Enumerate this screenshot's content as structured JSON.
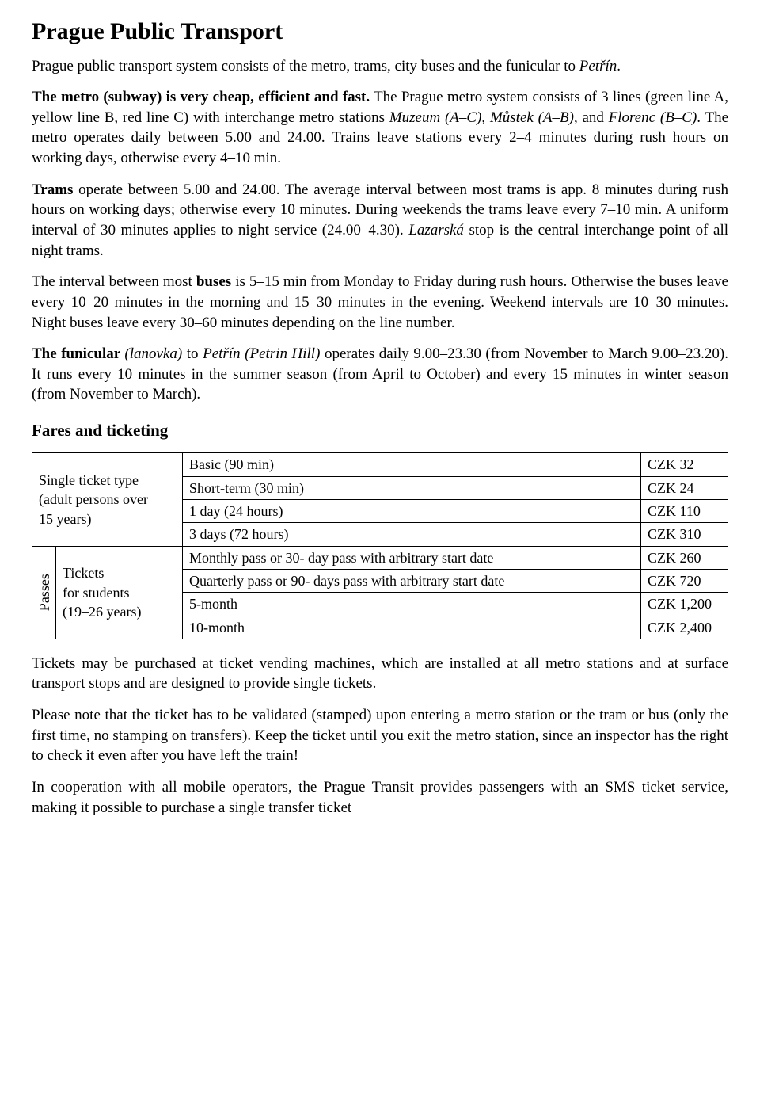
{
  "title": "Prague Public Transport",
  "intro_pre": "Prague public transport system consists of the metro, trams, city buses and the funicular to ",
  "intro_italic": "Petřín",
  "intro_post": ".",
  "metro_p1": "The metro (subway) is very cheap, efficient and fast.",
  "metro_p2_a": " The Prague metro system consists of 3 lines (green line A, yellow line B, red line C) with interchange metro stations ",
  "metro_p2_i1": "Muzeum (A–C)",
  "metro_p2_b": ", ",
  "metro_p2_i2": "Můstek (A–B)",
  "metro_p2_c": ", and ",
  "metro_p2_i3": "Florenc (B–C)",
  "metro_p2_d": ". The metro operates daily between 5.00 and 24.00. Trains leave stations every 2–4 minutes during rush hours on working days, otherwise every 4–10 min.",
  "trams_b": "Trams",
  "trams_a": " operate between 5.00 and 24.00. The average interval between most trams is app. 8 minutes during rush hours on working days; otherwise every 10 minutes. During weekends the trams leave every 7–10 min. A uniform interval of 30 minutes applies to night service (24.00–4.30). ",
  "trams_i": "Lazarská",
  "trams_c": " stop is the central interchange point of all night trams.",
  "buses_a": "The interval between most ",
  "buses_b": "buses",
  "buses_c": " is 5–15 min from Monday to Friday during rush hours. Otherwise the buses leave every 10–20 minutes in the morning and 15–30 minutes in the evening. Weekend intervals are 10–30 minutes. Night buses leave every 30–60 minutes depending on the line number.",
  "funic_b": "The funicular ",
  "funic_i1": "(lanovka)",
  "funic_a": " to ",
  "funic_i2": "Petřín (Petrin Hill)",
  "funic_c": " operates daily 9.00–23.30 (from November to March 9.00–23.20). It runs every 10 minutes in the summer season (from April to October) and every 15 minutes in winter season (from November to March).",
  "fares_heading": "Fares and ticketing",
  "table": {
    "single_label_l1": "Single ticket type",
    "single_label_l2": "(adult persons over",
    "single_label_l3": "15 years)",
    "passes_label": "Passes",
    "students_l1": "Tickets",
    "students_l2": "for students",
    "students_l3": "(19–26 years)",
    "rows": [
      {
        "desc": "Basic (90 min)",
        "price": "CZK 32"
      },
      {
        "desc": "Short-term (30 min)",
        "price": "CZK 24"
      },
      {
        "desc": "1 day (24 hours)",
        "price": "CZK 110"
      },
      {
        "desc": "3 days (72 hours)",
        "price": "CZK 310"
      },
      {
        "desc": "Monthly pass or 30- day pass with arbitrary start date",
        "price": "CZK 260"
      },
      {
        "desc": "Quarterly pass or 90- days pass with arbitrary start date",
        "price": "CZK 720"
      },
      {
        "desc": "5-month",
        "price": "CZK 1,200"
      },
      {
        "desc": "10-month",
        "price": "CZK 2,400"
      }
    ]
  },
  "after1": "Tickets may be purchased at ticket vending machines, which are installed at all metro stations and at surface transport stops and are designed to provide single tickets.",
  "after2": "Please note that the ticket has to be validated (stamped) upon entering a metro station or the tram or bus (only the first time, no stamping on transfers). Keep the ticket until you exit the metro station, since an inspector has the right to check it even after you have left the train!",
  "after3": "In cooperation with all mobile operators, the Prague Transit provides passengers with an SMS ticket service, making it possible to purchase a single transfer ticket"
}
